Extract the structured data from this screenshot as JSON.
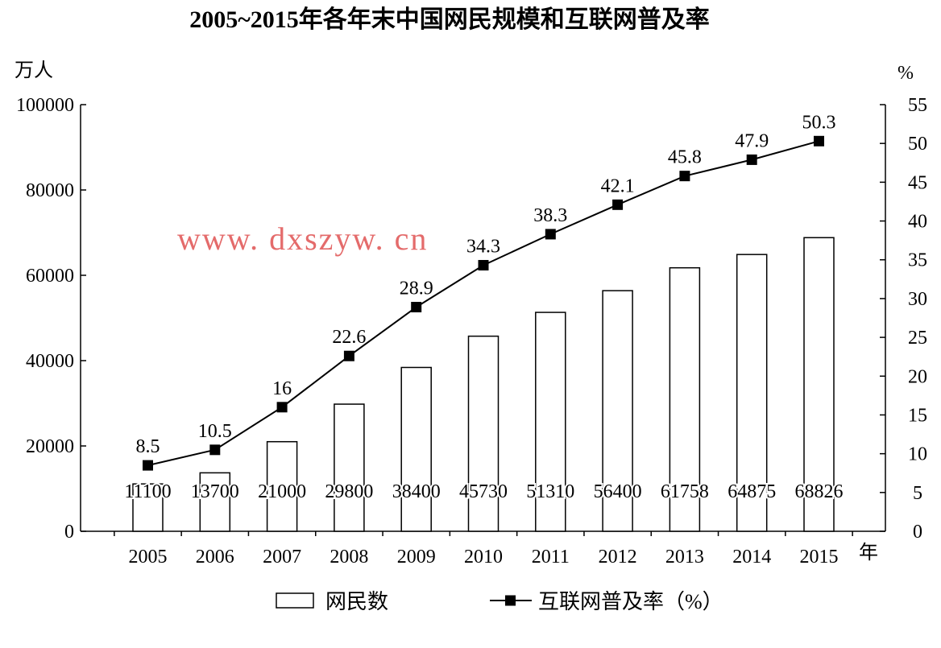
{
  "chart_data": {
    "type": "bar",
    "title": "2005~2015年各年末中国网民规模和互联网普及率",
    "categories": [
      "2005",
      "2006",
      "2007",
      "2008",
      "2009",
      "2010",
      "2011",
      "2012",
      "2013",
      "2014",
      "2015"
    ],
    "series": [
      {
        "name": "网民数",
        "type": "bar",
        "axis": "left",
        "values": [
          11100,
          13700,
          21000,
          29800,
          38400,
          45730,
          51310,
          56400,
          61758,
          64875,
          68826
        ]
      },
      {
        "name": "互联网普及率（%）",
        "type": "line",
        "axis": "right",
        "marker": "square",
        "values": [
          8.5,
          10.5,
          16,
          22.6,
          28.9,
          34.3,
          38.3,
          42.1,
          45.8,
          47.9,
          50.3
        ]
      }
    ],
    "point_labels": [
      "8.5",
      "10.5",
      "16",
      "22.6",
      "28.9",
      "34.3",
      "38.3",
      "42.1",
      "45.8",
      "47.9",
      "50.3"
    ],
    "bar_labels": [
      "11100",
      "13700",
      "21000",
      "29800",
      "38400",
      "45730",
      "51310",
      "56400",
      "61758",
      "64875",
      "68826"
    ],
    "left_axis": {
      "unit": "万人",
      "ylim": [
        0,
        100000
      ],
      "ticks": [
        0,
        20000,
        40000,
        60000,
        80000,
        100000
      ],
      "tick_labels": [
        "0",
        "20000",
        "40000",
        "60000",
        "80000",
        "100000"
      ]
    },
    "right_axis": {
      "unit": "%",
      "ylim": [
        0,
        55
      ],
      "ticks": [
        0,
        5,
        10,
        15,
        20,
        25,
        30,
        35,
        40,
        45,
        50,
        55
      ],
      "tick_labels": [
        "0",
        "5",
        "10",
        "15",
        "20",
        "25",
        "30",
        "35",
        "40",
        "45",
        "50",
        "55"
      ]
    },
    "x_axis": {
      "unit": "年"
    },
    "grid": false,
    "legend": {
      "position": "bottom",
      "entries": [
        "网民数",
        "互联网普及率（%）"
      ]
    },
    "watermark": "www. dxszyw. cn",
    "colors": {
      "bar_fill": "#ffffff",
      "line": "#000000",
      "marker": "#000000",
      "watermark": "#e46b6b"
    }
  }
}
